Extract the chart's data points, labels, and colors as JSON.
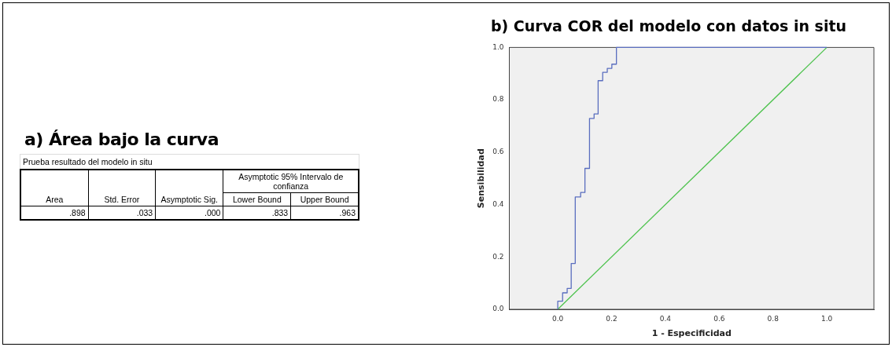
{
  "chart_data": [
    {
      "type": "other",
      "title": "a) Área bajo la curva",
      "subtitle": "Prueba resultado del modelo in situ",
      "categories": [
        "Area",
        "Std. Error",
        "Asymptotic Sig.",
        "Lower Bound",
        "Upper Bound"
      ],
      "value_labels": [
        ".898",
        ".033",
        ".000",
        ".833",
        ".963"
      ],
      "annotations": [
        "Asymptotic 95% Intervalo de confianza"
      ]
    },
    {
      "type": "step",
      "title": "b) Curva COR del modelo con datos in situ",
      "xlabel": "1 - Especificidad",
      "ylabel": "Sensibilidad",
      "marker": "none",
      "legend": false,
      "grid": false,
      "xlim": [
        -0.18,
        1.175
      ],
      "ylim": [
        0,
        1
      ],
      "xticks": [
        {
          "value": 0,
          "label": "0.0"
        },
        {
          "value": 0.2,
          "label": "0.2"
        },
        {
          "value": 0.4,
          "label": "0.4"
        },
        {
          "value": 0.6,
          "label": "0.6"
        },
        {
          "value": 0.8,
          "label": "0.8"
        },
        {
          "value": 1,
          "label": "1.0"
        }
      ],
      "yticks": [
        {
          "value": 0,
          "label": "0.0"
        },
        {
          "value": 0.2,
          "label": "0.2"
        },
        {
          "value": 0.4,
          "label": "0.4"
        },
        {
          "value": 0.6,
          "label": "0.6"
        },
        {
          "value": 0.8,
          "label": "0.8"
        },
        {
          "value": 1,
          "label": "1.0"
        }
      ],
      "series": [
        {
          "type": "step",
          "color": "#5a6ebf",
          "x": [
            0,
            0.018,
            0.035,
            0.05,
            0.065,
            0.085,
            0.101,
            0.118,
            0.135,
            0.15,
            0.167,
            0.184,
            0.201,
            0.218,
            1
          ],
          "values": [
            0,
            0.031,
            0.063,
            0.08,
            0.175,
            0.429,
            0.446,
            0.538,
            0.729,
            0.746,
            0.873,
            0.905,
            0.92,
            0.936,
            1
          ]
        },
        {
          "type": "line",
          "color": "#4cc24c",
          "x": [
            0,
            1
          ],
          "values": [
            0,
            1
          ]
        }
      ]
    }
  ]
}
